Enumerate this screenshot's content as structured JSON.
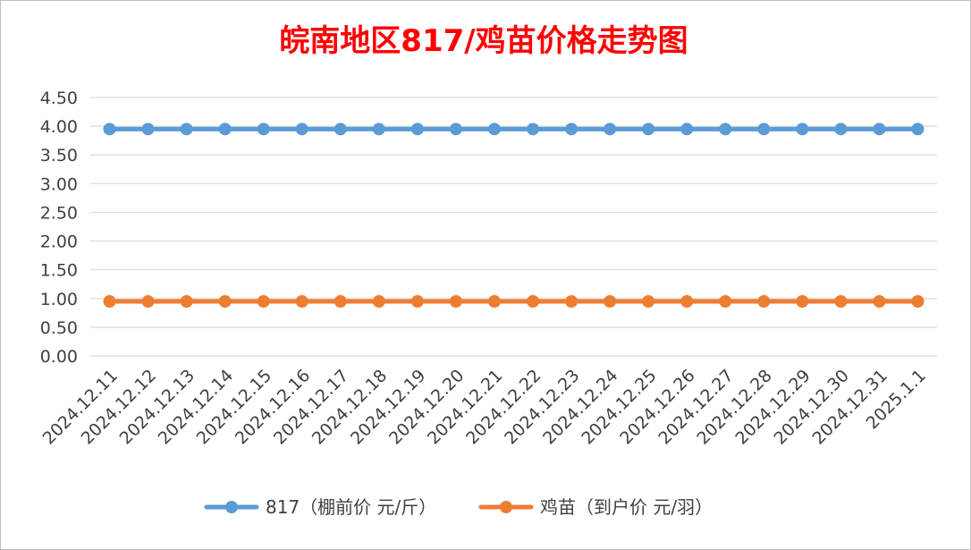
{
  "colors": {
    "title": "#ff0000",
    "series_1": "#5b9bd5",
    "series_2": "#ed7d31",
    "grid": "#d9d9d9",
    "axis_text": "#404040"
  },
  "chart_data": {
    "type": "line",
    "title": "皖南地区817/鸡苗价格走势图",
    "xlabel": "",
    "ylabel": "",
    "categories": [
      "2024.12.11",
      "2024.12.12",
      "2024.12.13",
      "2024.12.14",
      "2024.12.15",
      "2024.12.16",
      "2024.12.17",
      "2024.12.18",
      "2024.12.19",
      "2024.12.20",
      "2024.12.21",
      "2024.12.22",
      "2024.12.23",
      "2024.12.24",
      "2024.12.25",
      "2024.12.26",
      "2024.12.27",
      "2024.12.28",
      "2024.12.29",
      "2024.12.30",
      "2024.12.31",
      "2025.1.1"
    ],
    "ylim": [
      0,
      4.5
    ],
    "yticks": [
      "0.00",
      "0.50",
      "1.00",
      "1.50",
      "2.00",
      "2.50",
      "3.00",
      "3.50",
      "4.00",
      "4.50"
    ],
    "grid": true,
    "legend_position": "bottom",
    "series": [
      {
        "name": "817（棚前价 元/斤）",
        "values": [
          3.95,
          3.95,
          3.95,
          3.95,
          3.95,
          3.95,
          3.95,
          3.95,
          3.95,
          3.95,
          3.95,
          3.95,
          3.95,
          3.95,
          3.95,
          3.95,
          3.95,
          3.95,
          3.95,
          3.95,
          3.95,
          3.95
        ]
      },
      {
        "name": "鸡苗（到户价 元/羽）",
        "values": [
          0.95,
          0.95,
          0.95,
          0.95,
          0.95,
          0.95,
          0.95,
          0.95,
          0.95,
          0.95,
          0.95,
          0.95,
          0.95,
          0.95,
          0.95,
          0.95,
          0.95,
          0.95,
          0.95,
          0.95,
          0.95,
          0.95
        ]
      }
    ]
  }
}
